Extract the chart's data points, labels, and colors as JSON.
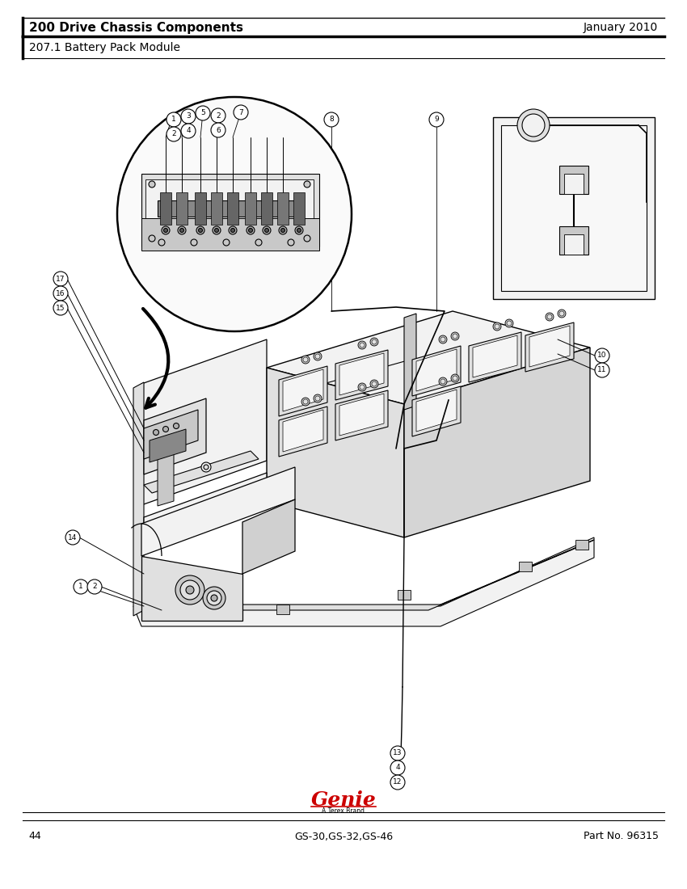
{
  "page_title": "200 Drive Chassis Components",
  "page_date": "January 2010",
  "section_title": "207.1 Battery Pack Module",
  "page_num": "44",
  "model": "GS-30,GS-32,GS-46",
  "part_no": "Part No. 96315",
  "bg_color": "#ffffff",
  "line_color": "#000000",
  "genie_color": "#cc0000",
  "gray1": "#f2f2f2",
  "gray2": "#e0e0e0",
  "gray3": "#c8c8c8",
  "gray4": "#b0b0b0"
}
